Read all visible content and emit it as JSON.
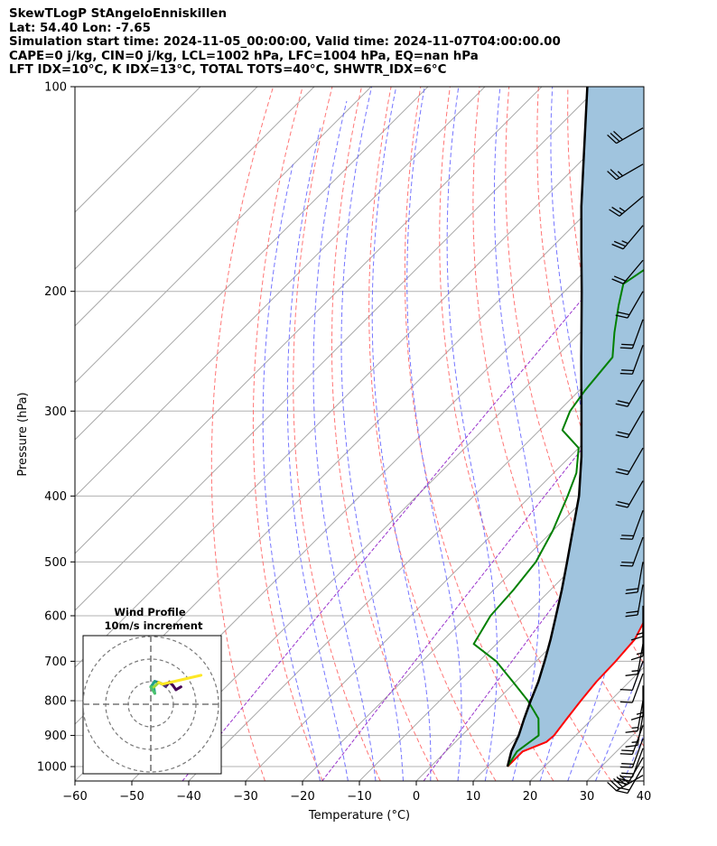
{
  "header": {
    "title": "SkewTLogP StAngeloEnniskillen",
    "location": "Lat: 54.40   Lon: -7.65",
    "times": "Simulation start time: 2024-11-05_00:00:00, Valid time: 2024-11-07T04:00:00.00",
    "params": "CAPE=0 j/kg, CIN=0 j/kg, LCL=1002 hPa, LFC=1004 hPa, EQ=nan hPa",
    "indices": "LFT IDX=10°C, K IDX=13°C, TOTAL TOTS=40°C, SHWTR_IDX=6°C"
  },
  "chart_data": {
    "type": "line",
    "subtype": "skew-t log-p",
    "xlabel": "Temperature (°C)",
    "ylabel": "Pressure (hPa)",
    "xlim": [
      -60,
      40
    ],
    "ylim_pressure": [
      1050,
      100
    ],
    "y_scale": "log",
    "x_ticks": [
      -60,
      -50,
      -40,
      -30,
      -20,
      -10,
      0,
      10,
      20,
      30,
      40
    ],
    "y_ticks": [
      1000,
      900,
      800,
      700,
      600,
      500,
      400,
      300,
      200,
      100
    ],
    "grid": true,
    "colors": {
      "temperature": "#ff0000",
      "dewpoint": "#008000",
      "parcel": "#000000",
      "shading": "#a0c4de",
      "dry_adiabat": "#ff6666",
      "moist_adiabat": "#6666ff",
      "mixing_ratio": "#9933cc",
      "isotherm": "#aaaaaa"
    },
    "series": [
      {
        "name": "",
        "key": "temperature",
        "points": [
          [
            1000,
            13.5
          ],
          [
            950,
            13.5
          ],
          [
            920,
            16.0
          ],
          [
            900,
            16.2
          ],
          [
            850,
            15.5
          ],
          [
            800,
            14.8
          ],
          [
            750,
            14.2
          ],
          [
            700,
            14.0
          ],
          [
            650,
            13.5
          ],
          [
            600,
            11.5
          ],
          [
            550,
            9.2
          ],
          [
            500,
            6.5
          ],
          [
            450,
            3.5
          ],
          [
            400,
            -0.5
          ],
          [
            350,
            -5.5
          ],
          [
            300,
            -12.0
          ],
          [
            250,
            -18.5
          ],
          [
            225,
            -21.5
          ],
          [
            200,
            -26.5
          ],
          [
            190,
            -28.5
          ],
          [
            180,
            -29.0
          ],
          [
            170,
            -28.0
          ],
          [
            160,
            -26.5
          ],
          [
            150,
            -25.0
          ],
          [
            140,
            -24.0
          ],
          [
            130,
            -22.5
          ],
          [
            125,
            -20.5
          ],
          [
            120,
            -18.5
          ],
          [
            115,
            -17.0
          ],
          [
            110,
            -16.5
          ],
          [
            105,
            -16.5
          ],
          [
            100,
            -16.0
          ]
        ]
      },
      {
        "name": "",
        "key": "dewpoint",
        "points": [
          [
            1000,
            13.5
          ],
          [
            950,
            12.5
          ],
          [
            900,
            13.5
          ],
          [
            850,
            10.5
          ],
          [
            800,
            5.5
          ],
          [
            750,
            -0.5
          ],
          [
            700,
            -7.0
          ],
          [
            660,
            -14.0
          ],
          [
            600,
            -16.0
          ],
          [
            550,
            -16.5
          ],
          [
            500,
            -17.5
          ],
          [
            450,
            -20.0
          ],
          [
            400,
            -23.5
          ],
          [
            370,
            -26.0
          ],
          [
            340,
            -30.0
          ],
          [
            320,
            -36.0
          ],
          [
            300,
            -38.0
          ],
          [
            280,
            -39.0
          ],
          [
            250,
            -40.0
          ],
          [
            230,
            -44.0
          ],
          [
            210,
            -48.0
          ],
          [
            195,
            -51.0
          ],
          [
            180,
            -49.0
          ],
          [
            170,
            -48.0
          ],
          [
            160,
            -47.0
          ],
          [
            150,
            -46.0
          ],
          [
            140,
            -44.5
          ],
          [
            130,
            -45.0
          ],
          [
            120,
            -39.0
          ],
          [
            110,
            -35.5
          ],
          [
            100,
            -33.0
          ]
        ]
      },
      {
        "name": "",
        "key": "parcel",
        "points": [
          [
            1000,
            13.5
          ],
          [
            950,
            11.5
          ],
          [
            900,
            10.0
          ],
          [
            850,
            8.0
          ],
          [
            800,
            6.0
          ],
          [
            750,
            4.0
          ],
          [
            700,
            1.5
          ],
          [
            650,
            -1.3
          ],
          [
            600,
            -4.5
          ],
          [
            550,
            -8.0
          ],
          [
            500,
            -12.0
          ],
          [
            450,
            -16.5
          ],
          [
            400,
            -21.5
          ],
          [
            350,
            -28.0
          ],
          [
            300,
            -36.0
          ],
          [
            250,
            -45.5
          ],
          [
            200,
            -57.0
          ],
          [
            175,
            -64.0
          ],
          [
            150,
            -72.0
          ],
          [
            125,
            -81.0
          ],
          [
            100,
            -92.0
          ]
        ]
      }
    ],
    "hodograph": {
      "title": "Wind Profile",
      "subtitle": "10m/s increment",
      "ring_step_ms": 10,
      "rings": 3
    },
    "wind_barbs": [
      {
        "p": 1030,
        "spd_kt": 50,
        "dir": 240
      },
      {
        "p": 1000,
        "spd_kt": 20,
        "dir": 210
      },
      {
        "p": 970,
        "spd_kt": 20,
        "dir": 210
      },
      {
        "p": 940,
        "spd_kt": 20,
        "dir": 200
      },
      {
        "p": 910,
        "spd_kt": 20,
        "dir": 200
      },
      {
        "p": 870,
        "spd_kt": 20,
        "dir": 200
      },
      {
        "p": 840,
        "spd_kt": 15,
        "dir": 190
      },
      {
        "p": 800,
        "spd_kt": 15,
        "dir": 190
      },
      {
        "p": 760,
        "spd_kt": 15,
        "dir": 180
      },
      {
        "p": 730,
        "spd_kt": 10,
        "dir": 200
      },
      {
        "p": 700,
        "spd_kt": 10,
        "dir": 200
      },
      {
        "p": 660,
        "spd_kt": 15,
        "dir": 190
      },
      {
        "p": 620,
        "spd_kt": 15,
        "dir": 180
      },
      {
        "p": 580,
        "spd_kt": 15,
        "dir": 180
      },
      {
        "p": 540,
        "spd_kt": 20,
        "dir": 190
      },
      {
        "p": 500,
        "spd_kt": 20,
        "dir": 190
      },
      {
        "p": 460,
        "spd_kt": 20,
        "dir": 200
      },
      {
        "p": 420,
        "spd_kt": 20,
        "dir": 200
      },
      {
        "p": 380,
        "spd_kt": 20,
        "dir": 210
      },
      {
        "p": 340,
        "spd_kt": 20,
        "dir": 210
      },
      {
        "p": 300,
        "spd_kt": 20,
        "dir": 210
      },
      {
        "p": 270,
        "spd_kt": 20,
        "dir": 210
      },
      {
        "p": 240,
        "spd_kt": 20,
        "dir": 200
      },
      {
        "p": 220,
        "spd_kt": 20,
        "dir": 200
      },
      {
        "p": 200,
        "spd_kt": 20,
        "dir": 210
      },
      {
        "p": 180,
        "spd_kt": 20,
        "dir": 220
      },
      {
        "p": 160,
        "spd_kt": 25,
        "dir": 220
      },
      {
        "p": 145,
        "spd_kt": 25,
        "dir": 230
      },
      {
        "p": 130,
        "spd_kt": 25,
        "dir": 240
      },
      {
        "p": 115,
        "spd_kt": 30,
        "dir": 240
      }
    ]
  }
}
